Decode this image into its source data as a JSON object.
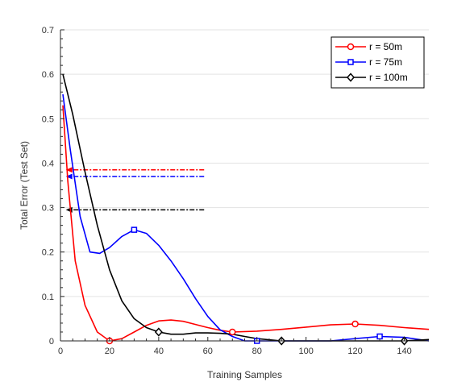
{
  "chart_data": {
    "type": "line",
    "title": "",
    "xlabel": "Training Samples",
    "ylabel": "Total Error (Test Set)",
    "xlim": [
      0,
      150
    ],
    "ylim": [
      0,
      0.7
    ],
    "xticks": [
      0,
      20,
      40,
      60,
      80,
      100,
      120,
      140
    ],
    "yticks": [
      0,
      0.1,
      0.2,
      0.3,
      0.4,
      0.5,
      0.6,
      0.7
    ],
    "grid": "horizontal",
    "legend_position": "top-right",
    "series": [
      {
        "name": "r = 50m",
        "color": "#ff0000",
        "marker": "circle",
        "x": [
          1,
          3,
          6,
          10,
          15,
          20,
          25,
          30,
          35,
          40,
          45,
          50,
          55,
          60,
          65,
          70,
          80,
          90,
          100,
          110,
          120,
          130,
          140,
          150
        ],
        "y": [
          0.53,
          0.36,
          0.18,
          0.08,
          0.02,
          0.0,
          0.005,
          0.02,
          0.035,
          0.045,
          0.047,
          0.044,
          0.037,
          0.03,
          0.024,
          0.02,
          0.022,
          0.026,
          0.031,
          0.036,
          0.038,
          0.035,
          0.03,
          0.026
        ],
        "markers_at": [
          20,
          70,
          120
        ],
        "reference_y": 0.385
      },
      {
        "name": "r = 75m",
        "color": "#0000ff",
        "marker": "square",
        "x": [
          1,
          4,
          8,
          12,
          16,
          20,
          25,
          30,
          35,
          40,
          45,
          50,
          55,
          60,
          65,
          70,
          75,
          80,
          90,
          100,
          110,
          120,
          130,
          140,
          150
        ],
        "y": [
          0.555,
          0.43,
          0.28,
          0.2,
          0.197,
          0.21,
          0.235,
          0.25,
          0.242,
          0.215,
          0.18,
          0.14,
          0.095,
          0.055,
          0.025,
          0.01,
          0.0,
          0.0,
          0.0,
          0.0,
          0.0,
          0.005,
          0.01,
          0.008,
          0.0
        ],
        "markers_at": [
          30,
          80,
          130
        ],
        "reference_y": 0.37
      },
      {
        "name": "r = 100m",
        "color": "#000000",
        "marker": "diamond",
        "x": [
          1,
          5,
          10,
          15,
          20,
          25,
          30,
          35,
          40,
          45,
          50,
          55,
          60,
          65,
          70,
          75,
          80,
          90,
          100,
          110,
          120,
          130,
          140,
          150
        ],
        "y": [
          0.6,
          0.51,
          0.38,
          0.26,
          0.16,
          0.09,
          0.05,
          0.03,
          0.02,
          0.015,
          0.015,
          0.018,
          0.018,
          0.017,
          0.015,
          0.01,
          0.005,
          0.0,
          0.0,
          0.0,
          0.0,
          0.0,
          0.0,
          0.003
        ],
        "markers_at": [
          40,
          90,
          140
        ],
        "reference_y": 0.295
      }
    ]
  }
}
